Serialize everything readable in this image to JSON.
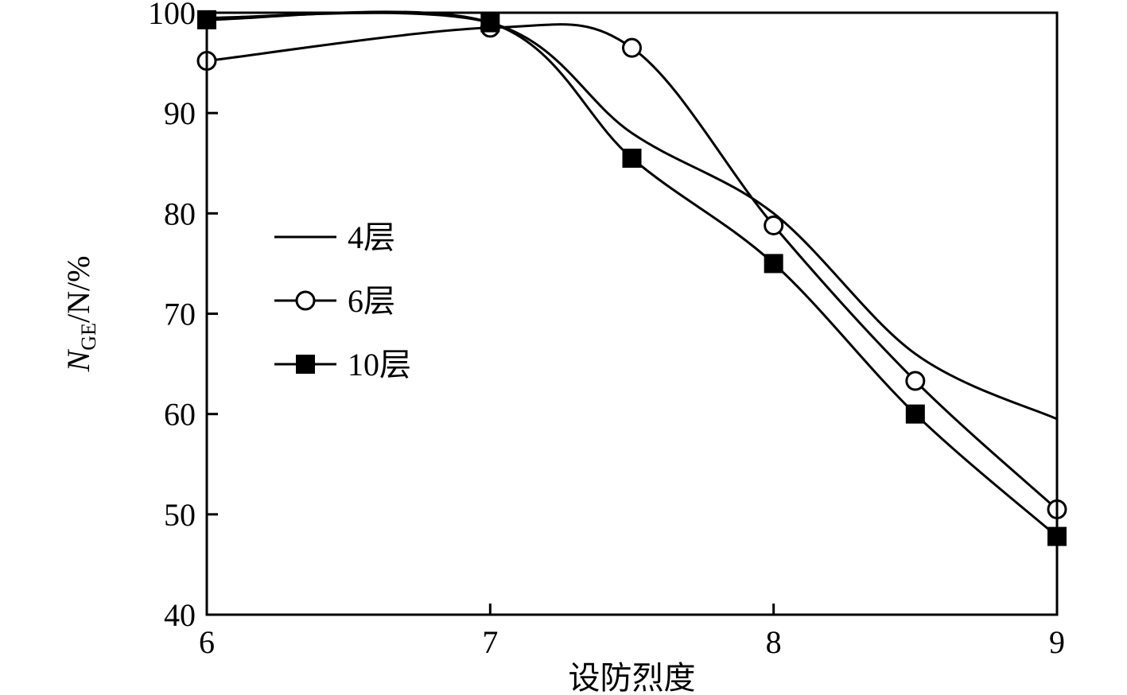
{
  "chart_data": {
    "type": "line",
    "xlabel": "设防烈度",
    "ylabel": {
      "main": "N",
      "sub": "GE",
      "rest": "/N/%"
    },
    "xlim": [
      6,
      9
    ],
    "ylim": [
      40,
      100
    ],
    "xticks": [
      "6",
      "7",
      "8",
      "9"
    ],
    "yticks": [
      "40",
      "50",
      "60",
      "70",
      "80",
      "90",
      "100"
    ],
    "grid": false,
    "legend_position": "left-middle",
    "series": [
      {
        "name": "4层",
        "marker": "none",
        "x": [
          6,
          7,
          7.5,
          8,
          8.5,
          9
        ],
        "y": [
          99.5,
          99,
          88,
          80,
          66,
          59.5
        ]
      },
      {
        "name": "6层",
        "marker": "open-circle",
        "x": [
          6,
          7,
          7.5,
          8,
          8.5,
          9
        ],
        "y": [
          95.2,
          98.5,
          96.5,
          78.8,
          63.3,
          50.5
        ]
      },
      {
        "name": "10层",
        "marker": "filled-square",
        "x": [
          6,
          7,
          7.5,
          8,
          8.5,
          9
        ],
        "y": [
          99.3,
          99,
          85.5,
          75,
          60,
          47.8
        ]
      }
    ]
  }
}
